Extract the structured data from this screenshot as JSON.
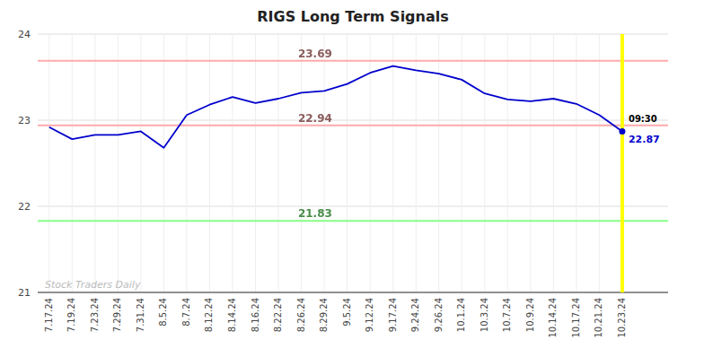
{
  "chart_data": {
    "type": "line",
    "title": "RIGS Long Term Signals",
    "categories": [
      "7.17.24",
      "7.19.24",
      "7.23.24",
      "7.29.24",
      "7.31.24",
      "8.5.24",
      "8.7.24",
      "8.12.24",
      "8.14.24",
      "8.16.24",
      "8.22.24",
      "8.26.24",
      "8.29.24",
      "9.5.24",
      "9.12.24",
      "9.17.24",
      "9.24.24",
      "9.26.24",
      "10.1.24",
      "10.3.24",
      "10.7.24",
      "10.9.24",
      "10.14.24",
      "10.17.24",
      "10.21.24",
      "10.23.24"
    ],
    "values": [
      22.92,
      22.78,
      22.83,
      22.83,
      22.87,
      22.68,
      23.06,
      23.18,
      23.27,
      23.2,
      23.25,
      23.32,
      23.34,
      23.42,
      23.55,
      23.63,
      23.58,
      23.54,
      23.47,
      23.31,
      23.24,
      23.22,
      23.25,
      23.19,
      23.06,
      22.87
    ],
    "color": "#0000cc",
    "ylim": [
      21,
      24
    ],
    "yticks": [
      21,
      22,
      23,
      24
    ],
    "grid": true,
    "hlines": [
      {
        "value": 23.69,
        "label": "23.69",
        "color": "#ffaaaa"
      },
      {
        "value": 22.94,
        "label": "22.94",
        "color": "#ffaaaa"
      },
      {
        "value": 21.83,
        "label": "21.83",
        "color": "#88ff88"
      }
    ],
    "vline": {
      "category": "10.23.24",
      "label": "09:30",
      "color": "#ffff00"
    },
    "end_label": {
      "value": 22.87,
      "label": "22.87"
    },
    "watermark": {
      "text": "Stock Traders Daily",
      "color": "#bbbbbb"
    }
  }
}
